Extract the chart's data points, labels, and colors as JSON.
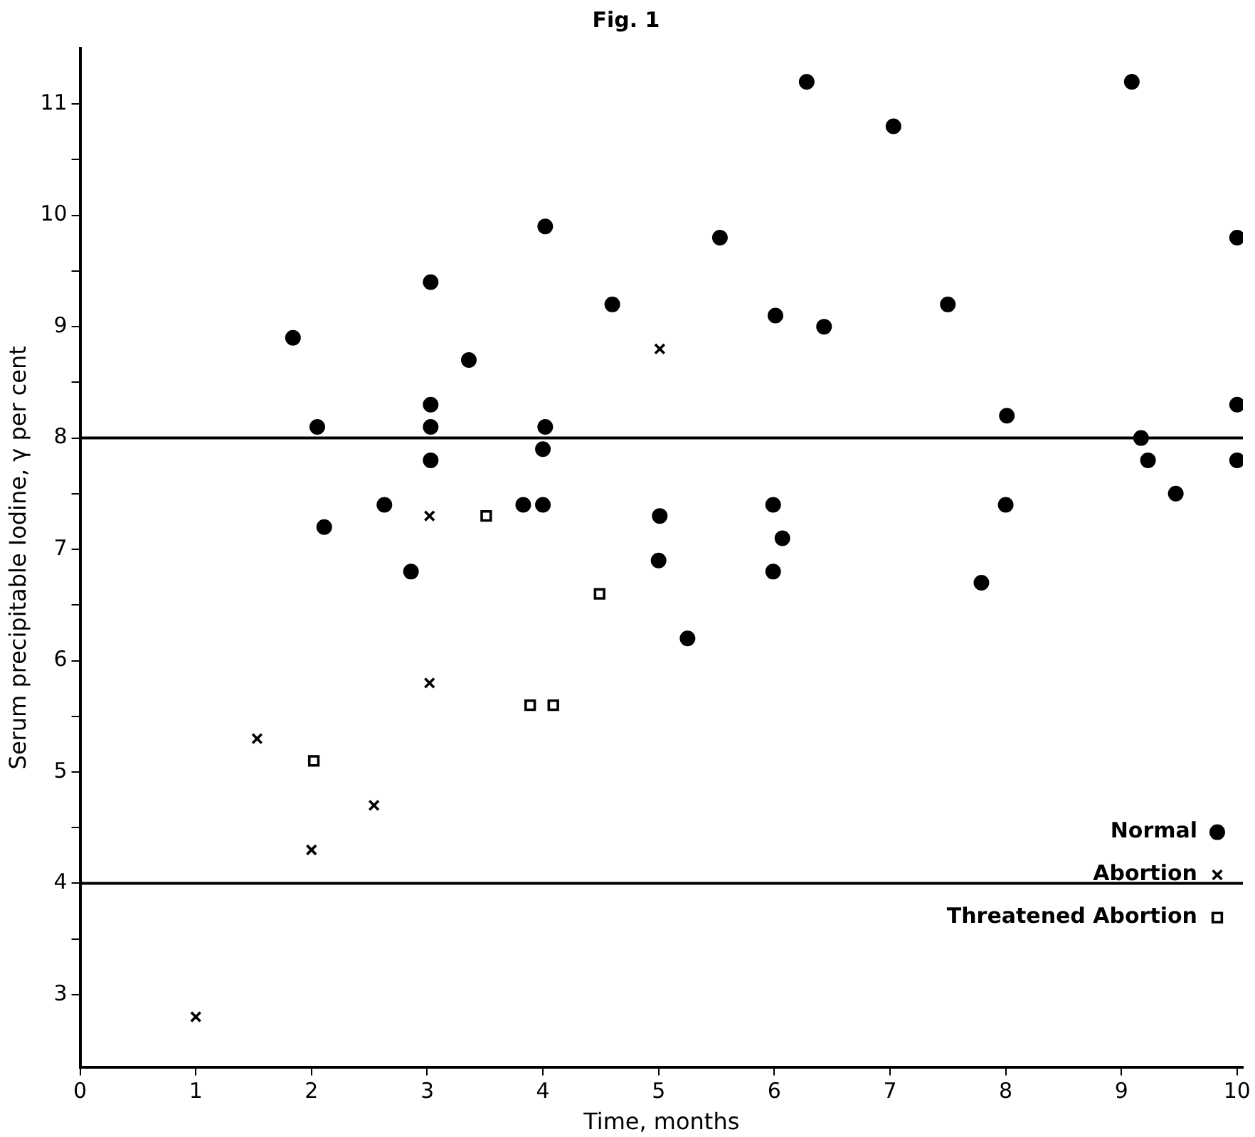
{
  "chart_data": {
    "type": "scatter",
    "title": "Fig. 1",
    "xlabel": "Time, months",
    "ylabel": "Serum precipitable Iodine, γ per cent",
    "xlim": [
      0,
      10.05
    ],
    "ylim": [
      2.35,
      11.5
    ],
    "xticks": [
      0,
      1,
      2,
      3,
      4,
      5,
      6,
      7,
      8,
      9,
      10
    ],
    "yticks": [
      3,
      {
        "value": 3.5,
        "label": null
      },
      4,
      {
        "value": 4.5,
        "label": null
      },
      5,
      {
        "value": 5.5,
        "label": null
      },
      6,
      {
        "value": 6.5,
        "label": null
      },
      7,
      {
        "value": 7.5,
        "label": null
      },
      8,
      {
        "value": 8.5,
        "label": null
      },
      9,
      {
        "value": 9.5,
        "label": null
      },
      10,
      {
        "value": 10.5,
        "label": null
      },
      11
    ],
    "grid": false,
    "legend": "bottom right",
    "ref_lines": [
      {
        "axis": "y",
        "value": 8,
        "color": "#000000"
      },
      {
        "axis": "y",
        "value": 4,
        "color": "#000000"
      }
    ],
    "series": [
      {
        "name": "Normal",
        "color": "#000000",
        "marker": "circle",
        "x": [
          1.84,
          2.05,
          2.11,
          2.63,
          2.86,
          3.03,
          3.03,
          3.03,
          3.03,
          3.36,
          4.02,
          4.02,
          4.0,
          4.0,
          3.83,
          4.6,
          5.01,
          5.0,
          5.25,
          5.53,
          6.01,
          5.99,
          5.99,
          6.07,
          6.28,
          6.43,
          7.03,
          7.5,
          7.79,
          8.01,
          8.0,
          9.09,
          9.17,
          9.23,
          9.47,
          10.0,
          10.0,
          10.0
        ],
        "values": [
          8.9,
          8.1,
          7.2,
          7.4,
          6.8,
          9.4,
          8.3,
          8.1,
          7.8,
          8.7,
          9.9,
          8.1,
          7.9,
          7.4,
          7.4,
          9.2,
          7.3,
          6.9,
          6.2,
          9.8,
          9.1,
          7.4,
          6.8,
          7.1,
          11.2,
          9.0,
          10.8,
          9.2,
          6.7,
          8.2,
          7.4,
          11.2,
          8.0,
          7.8,
          7.5,
          9.8,
          8.3,
          7.8
        ]
      },
      {
        "name": "Abortion",
        "color": "#000000",
        "marker": "cross",
        "x": [
          1.0,
          1.53,
          2.0,
          2.54,
          3.02,
          3.02,
          5.01
        ],
        "values": [
          2.8,
          5.3,
          4.3,
          4.7,
          7.3,
          5.8,
          8.8
        ]
      },
      {
        "name": "Threatened Abortion",
        "color": "#000000",
        "marker": "square",
        "x": [
          2.02,
          3.51,
          4.49,
          3.89,
          4.09
        ],
        "values": [
          5.1,
          7.3,
          6.6,
          5.6,
          5.6
        ]
      }
    ]
  }
}
